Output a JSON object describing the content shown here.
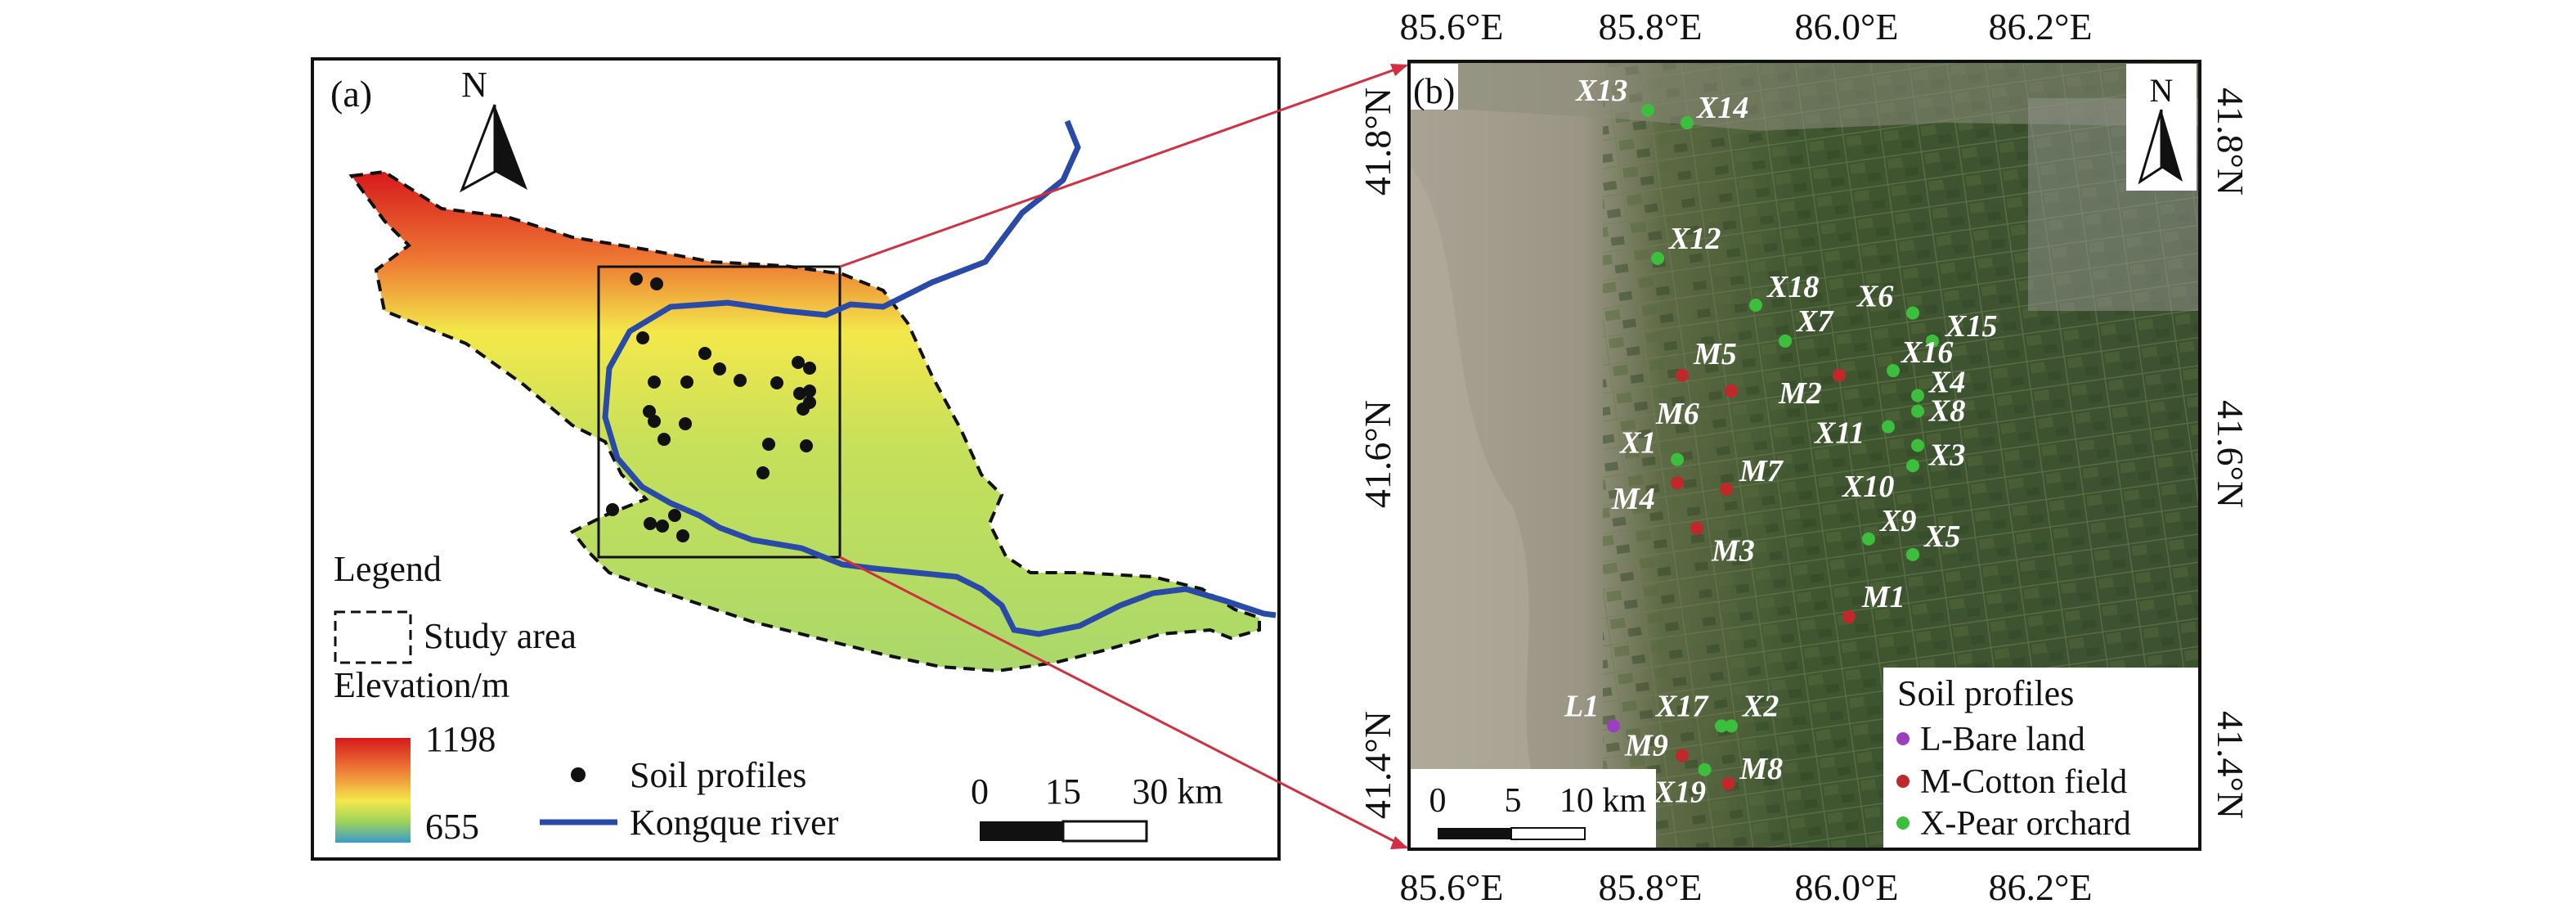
{
  "panel_a": {
    "label": "(a)",
    "north": "N",
    "legend": {
      "title": "Legend",
      "study_area": "Study area",
      "elevation_title": "Elevation/m",
      "elev_max": "1198",
      "elev_min": "655",
      "soil_profiles": "Soil profiles",
      "river": "Kongque river"
    },
    "scalebar": {
      "t0": "0",
      "t1": "15",
      "t2": "30 km"
    },
    "colors": {
      "river": "#2a4aa8",
      "high": "#d7191c",
      "mid": "#f3e84a",
      "low": "#3a9cc8"
    }
  },
  "panel_b": {
    "label": "(b)",
    "north": "N",
    "lon_labels": [
      "85.6°E",
      "85.8°E",
      "86.0°E",
      "86.2°E"
    ],
    "lat_labels": [
      "41.8°N",
      "41.6°N",
      "41.4°N"
    ],
    "scalebar": {
      "t0": "0",
      "t1": "5",
      "t2": "10 km"
    },
    "legend": {
      "title": "Soil profiles",
      "items": [
        {
          "label": "L-Bare land",
          "color": "#9b3fc0"
        },
        {
          "label": "M-Cotton field",
          "color": "#c0282a"
        },
        {
          "label": "X-Pear orchard",
          "color": "#3cbf3c"
        }
      ]
    },
    "sites": [
      {
        "id": "X13",
        "type": "X",
        "lon": 85.8,
        "lat": 41.82
      },
      {
        "id": "X14",
        "type": "X",
        "lon": 85.84,
        "lat": 41.812
      },
      {
        "id": "X12",
        "type": "X",
        "lon": 85.81,
        "lat": 41.725
      },
      {
        "id": "X18",
        "type": "X",
        "lon": 85.91,
        "lat": 41.695
      },
      {
        "id": "X6",
        "type": "X",
        "lon": 86.07,
        "lat": 41.69
      },
      {
        "id": "X15",
        "type": "X",
        "lon": 86.09,
        "lat": 41.672
      },
      {
        "id": "X7",
        "type": "X",
        "lon": 85.94,
        "lat": 41.672
      },
      {
        "id": "X16",
        "type": "X",
        "lon": 86.05,
        "lat": 41.653
      },
      {
        "id": "M5",
        "type": "M",
        "lon": 85.835,
        "lat": 41.65
      },
      {
        "id": "M2",
        "type": "M",
        "lon": 85.995,
        "lat": 41.65
      },
      {
        "id": "X4",
        "type": "X",
        "lon": 86.075,
        "lat": 41.637
      },
      {
        "id": "M6",
        "type": "M",
        "lon": 85.885,
        "lat": 41.64
      },
      {
        "id": "X8",
        "type": "X",
        "lon": 86.075,
        "lat": 41.627
      },
      {
        "id": "X11",
        "type": "X",
        "lon": 86.045,
        "lat": 41.617
      },
      {
        "id": "X3",
        "type": "X",
        "lon": 86.075,
        "lat": 41.605
      },
      {
        "id": "X1",
        "type": "X",
        "lon": 85.83,
        "lat": 41.596
      },
      {
        "id": "X10",
        "type": "X",
        "lon": 86.07,
        "lat": 41.592
      },
      {
        "id": "M7",
        "type": "M",
        "lon": 85.88,
        "lat": 41.577
      },
      {
        "id": "M4",
        "type": "M",
        "lon": 85.83,
        "lat": 41.581
      },
      {
        "id": "M3",
        "type": "M",
        "lon": 85.85,
        "lat": 41.552
      },
      {
        "id": "X9",
        "type": "X",
        "lon": 86.025,
        "lat": 41.545
      },
      {
        "id": "X5",
        "type": "X",
        "lon": 86.07,
        "lat": 41.535
      },
      {
        "id": "M1",
        "type": "M",
        "lon": 86.005,
        "lat": 41.495
      },
      {
        "id": "L1",
        "type": "L",
        "lon": 85.765,
        "lat": 41.425
      },
      {
        "id": "X17",
        "type": "X",
        "lon": 85.875,
        "lat": 41.425
      },
      {
        "id": "X2",
        "type": "X",
        "lon": 85.885,
        "lat": 41.425
      },
      {
        "id": "M9",
        "type": "M",
        "lon": 85.835,
        "lat": 41.406
      },
      {
        "id": "X19",
        "type": "X",
        "lon": 85.858,
        "lat": 41.397
      },
      {
        "id": "M8",
        "type": "M",
        "lon": 85.882,
        "lat": 41.388
      }
    ]
  }
}
